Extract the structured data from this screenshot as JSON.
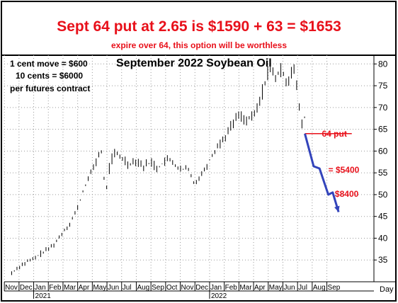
{
  "header": {
    "headline": "Sept 64 put at 2.65 is $1590 + 63 = $1653",
    "subline": "expire over 64, this option will be worthless"
  },
  "notes": {
    "line1": "1 cent move = $600",
    "line2": "10 cents = $6000",
    "line3": "per futures contract"
  },
  "colors": {
    "headline": "#e8101a",
    "price_series": "#000000",
    "projection": "#3344bb",
    "strike_line": "#e8101a",
    "annotation": "#e8101a",
    "grid": "#9a9a9a"
  },
  "chart_data": {
    "type": "line",
    "title": "September 2022 Soybean Oil",
    "xlabel": "Day",
    "ylabel": "",
    "ylim": [
      30,
      82
    ],
    "y_ticks": [
      35,
      40,
      45,
      50,
      55,
      60,
      65,
      70,
      75,
      80
    ],
    "grid": true,
    "grid_style": "dotted",
    "y_axis_side": "right",
    "x_month_labels": [
      "Nov",
      "Dec",
      "Jan",
      "Feb",
      "Mar",
      "Apr",
      "May",
      "Jun",
      "Jul",
      "Aug",
      "Sep",
      "Oct",
      "Nov",
      "Dec",
      "Jan",
      "Feb",
      "Mar",
      "Apr",
      "May",
      "Jun",
      "Jul",
      "Aug",
      "Sep"
    ],
    "x_year_labels": [
      {
        "label": "2021",
        "month_index": 2
      },
      {
        "label": "2022",
        "month_index": 14
      }
    ],
    "series": [
      {
        "values_by_month": [
          {
            "m": 0.0,
            "v": 32.0
          },
          {
            "m": 0.5,
            "v": 33.5
          },
          {
            "m": 1.0,
            "v": 34.5
          },
          {
            "m": 1.5,
            "v": 35.2
          },
          {
            "m": 2.0,
            "v": 36.5
          },
          {
            "m": 2.5,
            "v": 37.5
          },
          {
            "m": 3.0,
            "v": 39.0
          },
          {
            "m": 3.5,
            "v": 41.5
          },
          {
            "m": 4.0,
            "v": 43.5
          },
          {
            "m": 4.5,
            "v": 47.0
          },
          {
            "m": 5.0,
            "v": 52.0
          },
          {
            "m": 5.4,
            "v": 55.0
          },
          {
            "m": 5.8,
            "v": 58.0
          },
          {
            "m": 6.1,
            "v": 60.5
          },
          {
            "m": 6.4,
            "v": 50.0
          },
          {
            "m": 6.7,
            "v": 57.0
          },
          {
            "m": 7.0,
            "v": 59.5
          },
          {
            "m": 7.5,
            "v": 58.5
          },
          {
            "m": 8.0,
            "v": 57.0
          },
          {
            "m": 8.5,
            "v": 58.0
          },
          {
            "m": 9.0,
            "v": 56.5
          },
          {
            "m": 9.5,
            "v": 57.5
          },
          {
            "m": 10.0,
            "v": 56.0
          },
          {
            "m": 10.5,
            "v": 58.0
          },
          {
            "m": 11.0,
            "v": 57.5
          },
          {
            "m": 11.5,
            "v": 55.5
          },
          {
            "m": 12.0,
            "v": 56.0
          },
          {
            "m": 12.5,
            "v": 52.5
          },
          {
            "m": 13.0,
            "v": 55.0
          },
          {
            "m": 13.5,
            "v": 58.0
          },
          {
            "m": 14.0,
            "v": 61.0
          },
          {
            "m": 14.5,
            "v": 63.0
          },
          {
            "m": 15.0,
            "v": 66.0
          },
          {
            "m": 15.5,
            "v": 68.5
          },
          {
            "m": 16.0,
            "v": 67.0
          },
          {
            "m": 16.5,
            "v": 68.0
          },
          {
            "m": 17.0,
            "v": 72.0
          },
          {
            "m": 17.5,
            "v": 79.0
          },
          {
            "m": 18.0,
            "v": 77.0
          },
          {
            "m": 18.5,
            "v": 78.5
          },
          {
            "m": 18.8,
            "v": 75.5
          },
          {
            "m": 19.2,
            "v": 80.0
          },
          {
            "m": 19.5,
            "v": 73.0
          },
          {
            "m": 19.8,
            "v": 66.0
          },
          {
            "m": 20.0,
            "v": 68.0
          }
        ]
      }
    ],
    "strike_line": {
      "value": 64,
      "label": "64 put",
      "from_month": 20.0,
      "to_month": 23.2
    },
    "projection": {
      "points": [
        {
          "m": 20.0,
          "v": 64.0
        },
        {
          "m": 20.6,
          "v": 56.5
        },
        {
          "m": 21.0,
          "v": 56.0
        },
        {
          "m": 21.6,
          "v": 50.0
        },
        {
          "m": 21.9,
          "v": 50.5
        },
        {
          "m": 22.3,
          "v": 46.0
        }
      ],
      "arrow": true
    },
    "annotations": [
      {
        "text": "= $5400",
        "m": 21.6,
        "v": 55.0
      },
      {
        "text": "$8400",
        "m": 22.05,
        "v": 49.5
      }
    ]
  }
}
